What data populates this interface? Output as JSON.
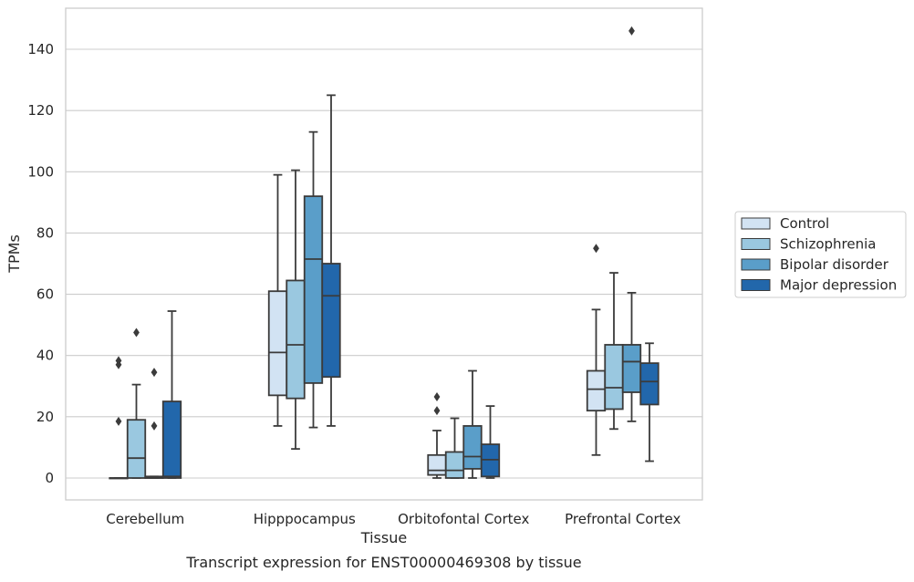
{
  "chart_data": {
    "type": "box",
    "xlabel": "Tissue",
    "ylabel": "TPMs",
    "caption": "Transcript expression for ENST00000469308 by tissue",
    "ylim": [
      -7,
      154
    ],
    "yticks": [
      0,
      20,
      40,
      60,
      80,
      100,
      120,
      140
    ],
    "grid": true,
    "legend_position": "right",
    "categories": [
      "Cerebellum",
      "Hipppocampus",
      "Orbitofontal Cortex",
      "Prefrontal Cortex"
    ],
    "series": [
      {
        "name": "Control",
        "color": "#d2e3f3",
        "boxes": [
          {
            "whislo": 0,
            "q1": 0,
            "med": 0,
            "q3": 0,
            "whishi": 0,
            "fliers": [
              18.5,
              37,
              38.3
            ]
          },
          {
            "whislo": 17,
            "q1": 27,
            "med": 41,
            "q3": 61,
            "whishi": 99,
            "fliers": []
          },
          {
            "whislo": 0,
            "q1": 1,
            "med": 2.5,
            "q3": 7.5,
            "whishi": 15.5,
            "fliers": [
              22,
              26.5
            ]
          },
          {
            "whislo": 7.5,
            "q1": 22,
            "med": 29,
            "q3": 35,
            "whishi": 55,
            "fliers": [
              75
            ]
          }
        ]
      },
      {
        "name": "Schizophrenia",
        "color": "#9ac8e0",
        "boxes": [
          {
            "whislo": 0,
            "q1": 0,
            "med": 6.5,
            "q3": 19,
            "whishi": 30.5,
            "fliers": [
              47.5
            ]
          },
          {
            "whislo": 9.5,
            "q1": 26,
            "med": 43.5,
            "q3": 64.5,
            "whishi": 100.5,
            "fliers": []
          },
          {
            "whislo": 0,
            "q1": 0,
            "med": 2.5,
            "q3": 8.5,
            "whishi": 19.5,
            "fliers": []
          },
          {
            "whislo": 16,
            "q1": 22.5,
            "med": 29.5,
            "q3": 43.5,
            "whishi": 67,
            "fliers": []
          }
        ]
      },
      {
        "name": "Bipolar disorder",
        "color": "#5a9ec9",
        "boxes": [
          {
            "whislo": 0,
            "q1": 0,
            "med": 0,
            "q3": 0.5,
            "whishi": 0.5,
            "fliers": [
              17,
              34.5
            ]
          },
          {
            "whislo": 16.5,
            "q1": 31,
            "med": 71.5,
            "q3": 92,
            "whishi": 113,
            "fliers": []
          },
          {
            "whislo": 0,
            "q1": 3,
            "med": 7,
            "q3": 17,
            "whishi": 35,
            "fliers": []
          },
          {
            "whislo": 18.5,
            "q1": 28,
            "med": 38,
            "q3": 43.5,
            "whishi": 60.5,
            "fliers": [
              146
            ]
          }
        ]
      },
      {
        "name": "Major depression",
        "color": "#2267ab",
        "boxes": [
          {
            "whislo": 0,
            "q1": 0,
            "med": 0.5,
            "q3": 25,
            "whishi": 54.5,
            "fliers": []
          },
          {
            "whislo": 17,
            "q1": 33,
            "med": 59.5,
            "q3": 70,
            "whishi": 125,
            "fliers": []
          },
          {
            "whislo": 0,
            "q1": 0.5,
            "med": 6,
            "q3": 11,
            "whishi": 23.5,
            "fliers": []
          },
          {
            "whislo": 5.5,
            "q1": 24,
            "med": 31.5,
            "q3": 37.5,
            "whishi": 44,
            "fliers": []
          }
        ]
      }
    ]
  }
}
